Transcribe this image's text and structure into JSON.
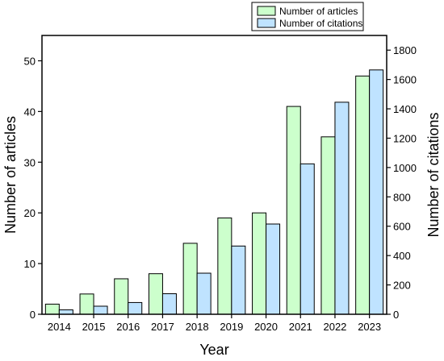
{
  "chart_data": {
    "type": "bar",
    "categories": [
      "2014",
      "2015",
      "2016",
      "2017",
      "2018",
      "2019",
      "2020",
      "2021",
      "2022",
      "2023"
    ],
    "series": [
      {
        "name": "Number of articles",
        "axis": "left",
        "color": "#ccffcc",
        "values": [
          2,
          4,
          7,
          8,
          14,
          19,
          20,
          41,
          35,
          47
        ]
      },
      {
        "name": "Number of citations",
        "axis": "right",
        "color": "#bfe3ff",
        "values": [
          30,
          55,
          80,
          140,
          280,
          465,
          615,
          1025,
          1445,
          1665
        ]
      }
    ],
    "xlabel": "Year",
    "ylabel": "Number of articles",
    "y2label": "Number of citations",
    "ylim": [
      0,
      55
    ],
    "y2lim": [
      0,
      1900
    ],
    "yticks": [
      0,
      10,
      20,
      30,
      40,
      50
    ],
    "y2ticks": [
      0,
      200,
      400,
      600,
      800,
      1000,
      1200,
      1400,
      1600,
      1800
    ],
    "legend_position": "top-right, above plot",
    "grid": false
  }
}
